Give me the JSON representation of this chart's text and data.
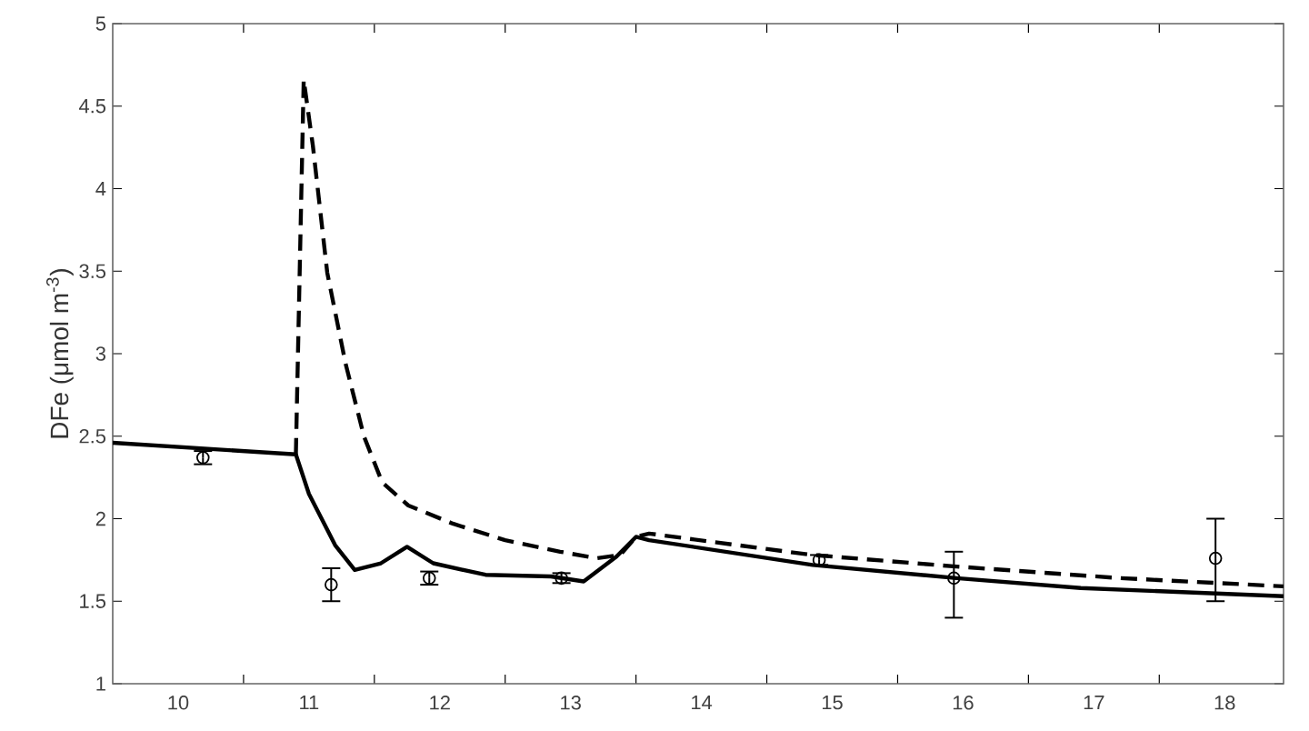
{
  "chart_data": {
    "type": "line",
    "ylabel": "DFe  (μmol m$^{-3}$)",
    "xlim": [
      9.5,
      18.45
    ],
    "ylim": [
      1,
      5
    ],
    "xticks": [
      {
        "value": 10,
        "label": "10"
      },
      {
        "value": 11,
        "label": "11"
      },
      {
        "value": 12,
        "label": "12"
      },
      {
        "value": 13,
        "label": "13"
      },
      {
        "value": 14,
        "label": "14"
      },
      {
        "value": 15,
        "label": "15"
      },
      {
        "value": 16,
        "label": "16"
      },
      {
        "value": 17,
        "label": "17"
      },
      {
        "value": 18,
        "label": "18"
      },
      {
        "value": 10.5,
        "label": null
      },
      {
        "value": 11.5,
        "label": null
      },
      {
        "value": 12.5,
        "label": null
      },
      {
        "value": 13.5,
        "label": null
      },
      {
        "value": 14.5,
        "label": null
      },
      {
        "value": 15.5,
        "label": null
      },
      {
        "value": 16.5,
        "label": null
      },
      {
        "value": 17.5,
        "label": null
      }
    ],
    "yticks": [
      1,
      1.5,
      2,
      2.5,
      3,
      3.5,
      4,
      4.5,
      5
    ],
    "series": [
      {
        "line_style": "solid",
        "color": "#000000",
        "x": [
          9.5,
          10.9,
          11.0,
          11.2,
          11.35,
          11.55,
          11.75,
          11.95,
          12.35,
          12.85,
          13.1,
          13.35,
          13.5,
          13.6,
          14.85,
          15.95,
          16.9,
          18.45
        ],
        "values": [
          2.46,
          2.39,
          2.15,
          1.84,
          1.69,
          1.73,
          1.83,
          1.73,
          1.66,
          1.65,
          1.62,
          1.77,
          1.89,
          1.87,
          1.72,
          1.64,
          1.58,
          1.53
        ]
      },
      {
        "line_style": "dashed",
        "color": "#000000",
        "x": [
          10.9,
          10.96,
          11.03,
          11.14,
          11.28,
          11.42,
          11.56,
          11.76,
          12.1,
          12.5,
          12.92,
          13.2,
          13.38,
          13.5,
          13.6,
          14.85,
          15.95,
          17.2,
          18.45
        ],
        "values": [
          2.39,
          4.66,
          4.26,
          3.49,
          2.94,
          2.5,
          2.22,
          2.08,
          1.97,
          1.87,
          1.8,
          1.76,
          1.78,
          1.89,
          1.91,
          1.78,
          1.71,
          1.64,
          1.59
        ]
      },
      {
        "type": "scatter",
        "marker": "circle",
        "color": "#000000",
        "x": [
          10.19,
          11.17,
          11.92,
          12.93,
          14.9,
          15.93,
          17.93
        ],
        "values": [
          2.37,
          1.6,
          1.64,
          1.64,
          1.75,
          1.64,
          1.76
        ],
        "errors": [
          0.04,
          0.1,
          0.04,
          0.03,
          0.03,
          [
            1.4,
            1.8
          ],
          [
            1.5,
            2.0
          ]
        ]
      }
    ]
  }
}
